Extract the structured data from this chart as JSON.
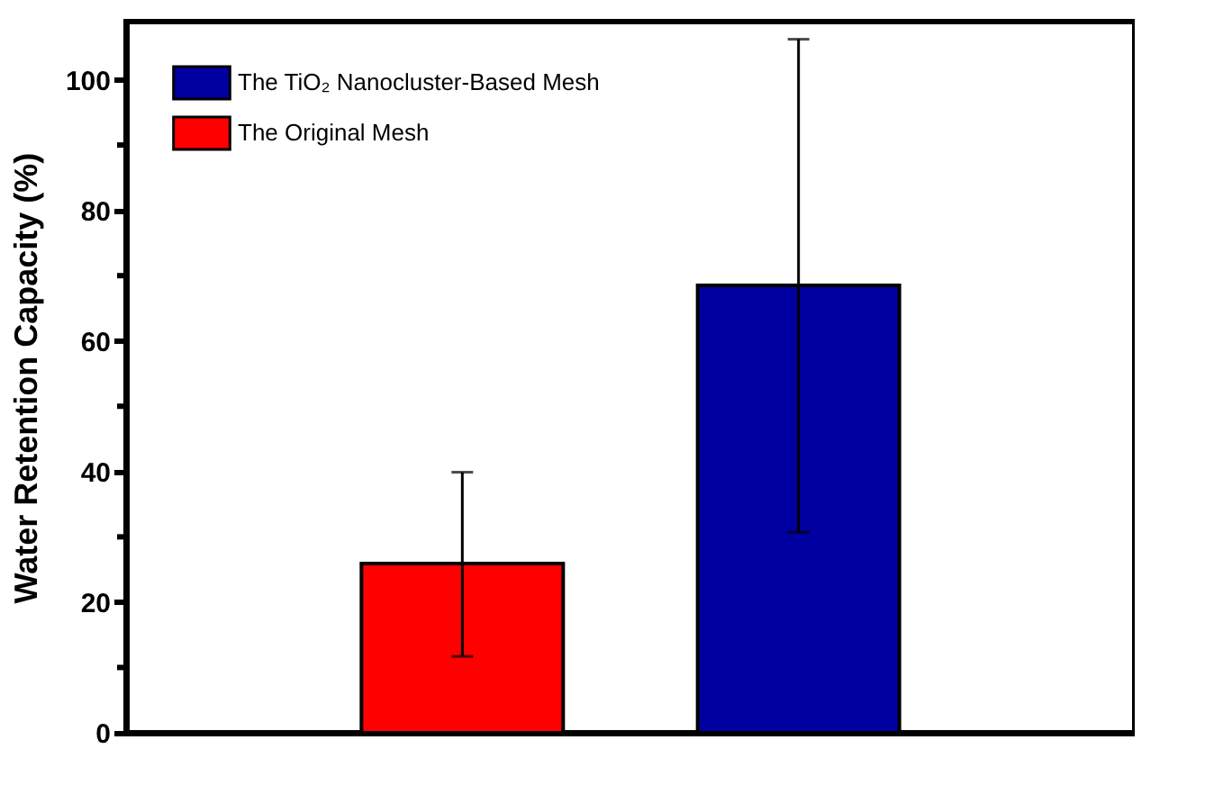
{
  "chart_data": {
    "type": "bar",
    "ylabel": "Water Retention Capacity (%)",
    "categories": [
      null,
      null
    ],
    "series": [
      {
        "name": "The TiO₂ Nanocluster-Based Mesh",
        "color": "#0000a0",
        "values": [
          null,
          68.5
        ],
        "errors": [
          null,
          [
            30.7,
            106.2
          ]
        ]
      },
      {
        "name": "The Original Mesh",
        "color": "#ff0000",
        "values": [
          25.9,
          null
        ],
        "errors": [
          [
            11.7,
            39.9
          ],
          null
        ]
      }
    ],
    "ylim": [
      0,
      108.9
    ],
    "yticks": [
      0,
      {
        "value": 10,
        "label": null
      },
      20,
      {
        "value": 30,
        "label": null
      },
      40,
      {
        "value": 50,
        "label": null
      },
      60,
      {
        "value": 70,
        "label": null
      },
      80,
      {
        "value": 90,
        "label": null
      },
      100
    ],
    "tick_labels": "y",
    "legend": "top left",
    "grid": false
  }
}
